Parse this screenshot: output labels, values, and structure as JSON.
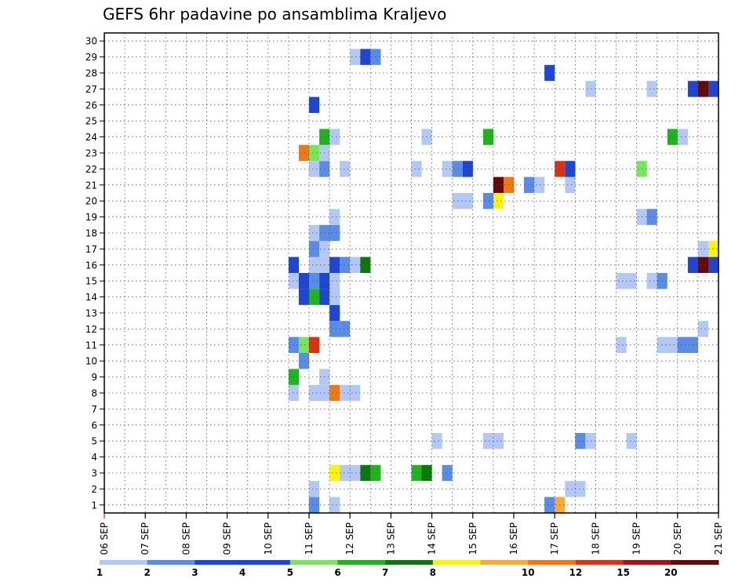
{
  "chart_data": {
    "type": "heatmap",
    "title": "GEFS 6hr padavine po ansamblima Kraljevo",
    "xlabel": "",
    "ylabel": "",
    "x_tick_labels": [
      "06 SEP",
      "07 SEP",
      "08 SEP",
      "09 SEP",
      "10 SEP",
      "11 SEP",
      "12 SEP",
      "13 SEP",
      "14 SEP",
      "15 SEP",
      "16 SEP",
      "17 SEP",
      "18 SEP",
      "19 SEP",
      "20 SEP",
      "21 SEP"
    ],
    "y_tick_labels": [
      "1",
      "2",
      "3",
      "4",
      "5",
      "6",
      "7",
      "8",
      "9",
      "10",
      "11",
      "12",
      "13",
      "14",
      "15",
      "16",
      "17",
      "18",
      "19",
      "20",
      "21",
      "22",
      "23",
      "24",
      "25",
      "26",
      "27",
      "28",
      "29",
      "30"
    ],
    "x_range_days": [
      6,
      21
    ],
    "y_range": [
      0.5,
      30.5
    ],
    "grid": true,
    "colorbar": {
      "labels": [
        "1",
        "2",
        "3",
        "4",
        "5",
        "6",
        "7",
        "8",
        "10",
        "12",
        "15",
        "20"
      ],
      "colors": [
        "#b4c8f5",
        "#5a8ce6",
        "#1e46d2",
        "#1e46d2",
        "#78e65a",
        "#1eb41e",
        "#0a780a",
        "#faf50a",
        "#faaa32",
        "#f07814",
        "#dc3214",
        "#a01414",
        "#640a0a"
      ]
    },
    "cells": [
      {
        "member": 1,
        "day": 11.0,
        "n": 1,
        "level": 2
      },
      {
        "member": 1,
        "day": 11.5,
        "n": 1,
        "level": 1
      },
      {
        "member": 1,
        "day": 16.75,
        "n": 1,
        "level": 2
      },
      {
        "member": 1,
        "day": 17.0,
        "n": 1,
        "level": 10
      },
      {
        "member": 2,
        "day": 11.0,
        "n": 1,
        "level": 1
      },
      {
        "member": 2,
        "day": 17.25,
        "n": 2,
        "level": 1
      },
      {
        "member": 3,
        "day": 11.5,
        "n": 1,
        "level": 8
      },
      {
        "member": 3,
        "day": 11.75,
        "n": 2,
        "level": 1
      },
      {
        "member": 3,
        "day": 12.25,
        "n": 1,
        "level": 7
      },
      {
        "member": 3,
        "day": 12.5,
        "n": 1,
        "level": 6
      },
      {
        "member": 3,
        "day": 13.5,
        "n": 1,
        "level": 6
      },
      {
        "member": 3,
        "day": 13.75,
        "n": 1,
        "level": 7
      },
      {
        "member": 3,
        "day": 14.25,
        "n": 1,
        "level": 2
      },
      {
        "member": 5,
        "day": 14.0,
        "n": 1,
        "level": 1
      },
      {
        "member": 5,
        "day": 15.25,
        "n": 2,
        "level": 1
      },
      {
        "member": 5,
        "day": 17.5,
        "n": 1,
        "level": 2
      },
      {
        "member": 5,
        "day": 17.75,
        "n": 1,
        "level": 1
      },
      {
        "member": 5,
        "day": 18.75,
        "n": 1,
        "level": 1
      },
      {
        "member": 8,
        "day": 10.5,
        "n": 1,
        "level": 1
      },
      {
        "member": 8,
        "day": 11.0,
        "n": 2,
        "level": 1
      },
      {
        "member": 8,
        "day": 11.5,
        "n": 1,
        "level": 12
      },
      {
        "member": 8,
        "day": 11.75,
        "n": 2,
        "level": 1
      },
      {
        "member": 9,
        "day": 10.5,
        "n": 1,
        "level": 6
      },
      {
        "member": 9,
        "day": 11.25,
        "n": 1,
        "level": 1
      },
      {
        "member": 10,
        "day": 10.75,
        "n": 1,
        "level": 2
      },
      {
        "member": 11,
        "day": 10.5,
        "n": 1,
        "level": 2
      },
      {
        "member": 11,
        "day": 10.75,
        "n": 1,
        "level": 5
      },
      {
        "member": 11,
        "day": 11.0,
        "n": 1,
        "level": 15
      },
      {
        "member": 11,
        "day": 18.5,
        "n": 1,
        "level": 1
      },
      {
        "member": 11,
        "day": 19.5,
        "n": 2,
        "level": 1
      },
      {
        "member": 11,
        "day": 20.0,
        "n": 2,
        "level": 2
      },
      {
        "member": 12,
        "day": 11.5,
        "n": 2,
        "level": 2
      },
      {
        "member": 12,
        "day": 20.5,
        "n": 1,
        "level": 1
      },
      {
        "member": 13,
        "day": 11.5,
        "n": 1,
        "level": 3
      },
      {
        "member": 14,
        "day": 10.75,
        "n": 1,
        "level": 3
      },
      {
        "member": 14,
        "day": 11.0,
        "n": 1,
        "level": 6
      },
      {
        "member": 14,
        "day": 11.25,
        "n": 1,
        "level": 3
      },
      {
        "member": 14,
        "day": 11.5,
        "n": 1,
        "level": 1
      },
      {
        "member": 15,
        "day": 10.5,
        "n": 1,
        "level": 1
      },
      {
        "member": 15,
        "day": 10.75,
        "n": 1,
        "level": 3
      },
      {
        "member": 15,
        "day": 11.0,
        "n": 1,
        "level": 2
      },
      {
        "member": 15,
        "day": 11.25,
        "n": 1,
        "level": 3
      },
      {
        "member": 15,
        "day": 11.5,
        "n": 1,
        "level": 1
      },
      {
        "member": 15,
        "day": 18.5,
        "n": 2,
        "level": 1
      },
      {
        "member": 15,
        "day": 19.25,
        "n": 1,
        "level": 1
      },
      {
        "member": 15,
        "day": 19.5,
        "n": 1,
        "level": 2
      },
      {
        "member": 16,
        "day": 10.5,
        "n": 1,
        "level": 3
      },
      {
        "member": 16,
        "day": 11.0,
        "n": 2,
        "level": 1
      },
      {
        "member": 16,
        "day": 11.5,
        "n": 1,
        "level": 3
      },
      {
        "member": 16,
        "day": 11.75,
        "n": 1,
        "level": 2
      },
      {
        "member": 16,
        "day": 12.0,
        "n": 1,
        "level": 1
      },
      {
        "member": 16,
        "day": 12.25,
        "n": 1,
        "level": 7
      },
      {
        "member": 16,
        "day": 20.25,
        "n": 1,
        "level": 3
      },
      {
        "member": 16,
        "day": 20.5,
        "n": 1,
        "level": 20
      },
      {
        "member": 16,
        "day": 20.75,
        "n": 1,
        "level": 3
      },
      {
        "member": 17,
        "day": 11.0,
        "n": 1,
        "level": 2
      },
      {
        "member": 17,
        "day": 11.25,
        "n": 1,
        "level": 1
      },
      {
        "member": 17,
        "day": 20.5,
        "n": 1,
        "level": 1
      },
      {
        "member": 17,
        "day": 20.75,
        "n": 1,
        "level": 8
      },
      {
        "member": 18,
        "day": 11.0,
        "n": 1,
        "level": 1
      },
      {
        "member": 18,
        "day": 11.25,
        "n": 2,
        "level": 2
      },
      {
        "member": 19,
        "day": 11.5,
        "n": 1,
        "level": 1
      },
      {
        "member": 19,
        "day": 19.0,
        "n": 1,
        "level": 1
      },
      {
        "member": 19,
        "day": 19.25,
        "n": 1,
        "level": 2
      },
      {
        "member": 20,
        "day": 14.5,
        "n": 2,
        "level": 1
      },
      {
        "member": 20,
        "day": 15.25,
        "n": 1,
        "level": 2
      },
      {
        "member": 20,
        "day": 15.5,
        "n": 1,
        "level": 8
      },
      {
        "member": 21,
        "day": 15.5,
        "n": 1,
        "level": 20
      },
      {
        "member": 21,
        "day": 15.75,
        "n": 1,
        "level": 12
      },
      {
        "member": 21,
        "day": 16.25,
        "n": 1,
        "level": 2
      },
      {
        "member": 21,
        "day": 16.5,
        "n": 1,
        "level": 1
      },
      {
        "member": 21,
        "day": 17.25,
        "n": 1,
        "level": 1
      },
      {
        "member": 22,
        "day": 11.0,
        "n": 1,
        "level": 1
      },
      {
        "member": 22,
        "day": 11.25,
        "n": 1,
        "level": 2
      },
      {
        "member": 22,
        "day": 11.75,
        "n": 1,
        "level": 1
      },
      {
        "member": 22,
        "day": 13.5,
        "n": 1,
        "level": 1
      },
      {
        "member": 22,
        "day": 14.25,
        "n": 1,
        "level": 1
      },
      {
        "member": 22,
        "day": 14.5,
        "n": 1,
        "level": 2
      },
      {
        "member": 22,
        "day": 14.75,
        "n": 1,
        "level": 3
      },
      {
        "member": 22,
        "day": 17.0,
        "n": 1,
        "level": 15
      },
      {
        "member": 22,
        "day": 17.25,
        "n": 1,
        "level": 3
      },
      {
        "member": 22,
        "day": 19.0,
        "n": 1,
        "level": 5
      },
      {
        "member": 23,
        "day": 10.75,
        "n": 1,
        "level": 12
      },
      {
        "member": 23,
        "day": 11.0,
        "n": 1,
        "level": 5
      },
      {
        "member": 23,
        "day": 11.25,
        "n": 1,
        "level": 1
      },
      {
        "member": 24,
        "day": 11.25,
        "n": 1,
        "level": 6
      },
      {
        "member": 24,
        "day": 11.5,
        "n": 1,
        "level": 1
      },
      {
        "member": 24,
        "day": 13.75,
        "n": 1,
        "level": 1
      },
      {
        "member": 24,
        "day": 15.25,
        "n": 1,
        "level": 6
      },
      {
        "member": 24,
        "day": 19.75,
        "n": 1,
        "level": 6
      },
      {
        "member": 24,
        "day": 20.0,
        "n": 1,
        "level": 1
      },
      {
        "member": 26,
        "day": 11.0,
        "n": 1,
        "level": 3
      },
      {
        "member": 27,
        "day": 17.75,
        "n": 1,
        "level": 1
      },
      {
        "member": 27,
        "day": 19.25,
        "n": 1,
        "level": 1
      },
      {
        "member": 27,
        "day": 20.25,
        "n": 1,
        "level": 3
      },
      {
        "member": 27,
        "day": 20.5,
        "n": 1,
        "level": 20
      },
      {
        "member": 27,
        "day": 20.75,
        "n": 1,
        "level": 3
      },
      {
        "member": 28,
        "day": 16.75,
        "n": 1,
        "level": 3
      },
      {
        "member": 29,
        "day": 12.0,
        "n": 1,
        "level": 1
      },
      {
        "member": 29,
        "day": 12.25,
        "n": 1,
        "level": 3
      },
      {
        "member": 29,
        "day": 12.5,
        "n": 1,
        "level": 2
      }
    ]
  }
}
